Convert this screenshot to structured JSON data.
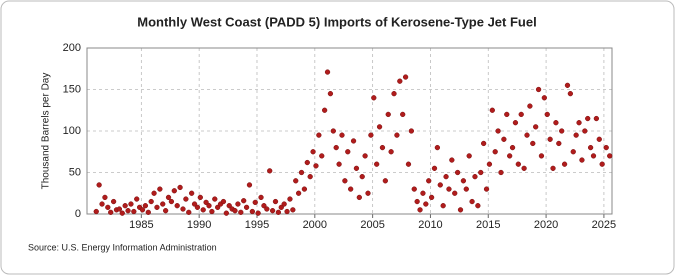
{
  "chart_data": {
    "type": "scatter",
    "title": "Monthly West Coast (PADD 5) Imports of Kerosene-Type Jet Fuel",
    "y_label": "Thousand Barrels per Day",
    "source": "Source: U.S. Energy Information Administration",
    "color": "#b01c1c",
    "grid": true,
    "xlim": [
      1980.3,
      2025.7
    ],
    "ylim": [
      0,
      200
    ],
    "xticks": [
      1985,
      1990,
      1995,
      2000,
      2005,
      2010,
      2015,
      2020,
      2025
    ],
    "yticks": [
      0,
      50,
      100,
      150,
      200
    ],
    "x": [
      1981.1,
      1981.35,
      1981.6,
      1981.85,
      1982.1,
      1982.35,
      1982.6,
      1982.85,
      1983.1,
      1983.35,
      1983.6,
      1983.85,
      1984.1,
      1984.35,
      1984.6,
      1984.85,
      1985.1,
      1985.35,
      1985.6,
      1985.85,
      1986.1,
      1986.35,
      1986.6,
      1986.85,
      1987.1,
      1987.35,
      1987.6,
      1987.85,
      1988.1,
      1988.35,
      1988.6,
      1988.85,
      1989.1,
      1989.35,
      1989.6,
      1989.85,
      1990.1,
      1990.35,
      1990.6,
      1990.85,
      1991.1,
      1991.35,
      1991.6,
      1991.85,
      1992.1,
      1992.35,
      1992.6,
      1992.85,
      1993.1,
      1993.35,
      1993.6,
      1993.85,
      1994.1,
      1994.35,
      1994.6,
      1994.85,
      1995.1,
      1995.35,
      1995.6,
      1995.85,
      1996.1,
      1996.35,
      1996.6,
      1996.85,
      1997.1,
      1997.35,
      1997.6,
      1997.85,
      1998.1,
      1998.35,
      1998.6,
      1998.85,
      1999.1,
      1999.35,
      1999.6,
      1999.85,
      2000.1,
      2000.35,
      2000.6,
      2000.85,
      2001.1,
      2001.35,
      2001.6,
      2001.85,
      2002.1,
      2002.35,
      2002.6,
      2002.85,
      2003.1,
      2003.35,
      2003.6,
      2003.85,
      2004.1,
      2004.35,
      2004.6,
      2004.85,
      2005.1,
      2005.35,
      2005.6,
      2005.85,
      2006.1,
      2006.35,
      2006.6,
      2006.85,
      2007.1,
      2007.35,
      2007.6,
      2007.85,
      2008.1,
      2008.35,
      2008.6,
      2008.85,
      2009.1,
      2009.35,
      2009.6,
      2009.85,
      2010.1,
      2010.35,
      2010.6,
      2010.85,
      2011.1,
      2011.35,
      2011.6,
      2011.85,
      2012.1,
      2012.35,
      2012.6,
      2012.85,
      2013.1,
      2013.35,
      2013.6,
      2013.85,
      2014.1,
      2014.35,
      2014.6,
      2014.85,
      2015.1,
      2015.35,
      2015.6,
      2015.85,
      2016.1,
      2016.35,
      2016.6,
      2016.85,
      2017.1,
      2017.35,
      2017.6,
      2017.85,
      2018.1,
      2018.35,
      2018.6,
      2018.85,
      2019.1,
      2019.35,
      2019.6,
      2019.85,
      2020.1,
      2020.35,
      2020.6,
      2020.85,
      2021.1,
      2021.35,
      2021.6,
      2021.85,
      2022.1,
      2022.35,
      2022.6,
      2022.85,
      2023.1,
      2023.35,
      2023.6,
      2023.85,
      2024.1,
      2024.35,
      2024.6,
      2024.85,
      2025.2,
      2025.5
    ],
    "values": [
      3,
      35,
      12,
      20,
      8,
      2,
      15,
      5,
      6,
      1,
      10,
      4,
      12,
      3,
      18,
      8,
      5,
      10,
      2,
      15,
      25,
      8,
      30,
      12,
      4,
      20,
      15,
      28,
      10,
      32,
      6,
      18,
      2,
      25,
      12,
      8,
      20,
      5,
      14,
      10,
      3,
      18,
      8,
      12,
      15,
      1,
      10,
      6,
      4,
      12,
      2,
      16,
      8,
      35,
      3,
      14,
      1,
      20,
      10,
      6,
      52,
      4,
      15,
      2,
      8,
      12,
      3,
      18,
      5,
      40,
      25,
      50,
      30,
      62,
      45,
      75,
      58,
      95,
      70,
      125,
      171,
      145,
      100,
      80,
      60,
      95,
      40,
      75,
      30,
      88,
      55,
      20,
      45,
      70,
      25,
      95,
      140,
      60,
      105,
      80,
      40,
      120,
      75,
      145,
      95,
      160,
      120,
      165,
      60,
      100,
      30,
      15,
      5,
      25,
      12,
      40,
      20,
      55,
      80,
      35,
      10,
      45,
      30,
      65,
      25,
      50,
      5,
      40,
      30,
      70,
      15,
      45,
      10,
      50,
      85,
      30,
      60,
      125,
      75,
      100,
      50,
      90,
      120,
      70,
      80,
      110,
      60,
      120,
      55,
      95,
      130,
      85,
      105,
      150,
      70,
      140,
      120,
      90,
      55,
      110,
      85,
      100,
      60,
      155,
      145,
      75,
      95,
      110,
      65,
      100,
      115,
      80,
      70,
      115,
      90,
      60,
      80,
      70
    ]
  }
}
